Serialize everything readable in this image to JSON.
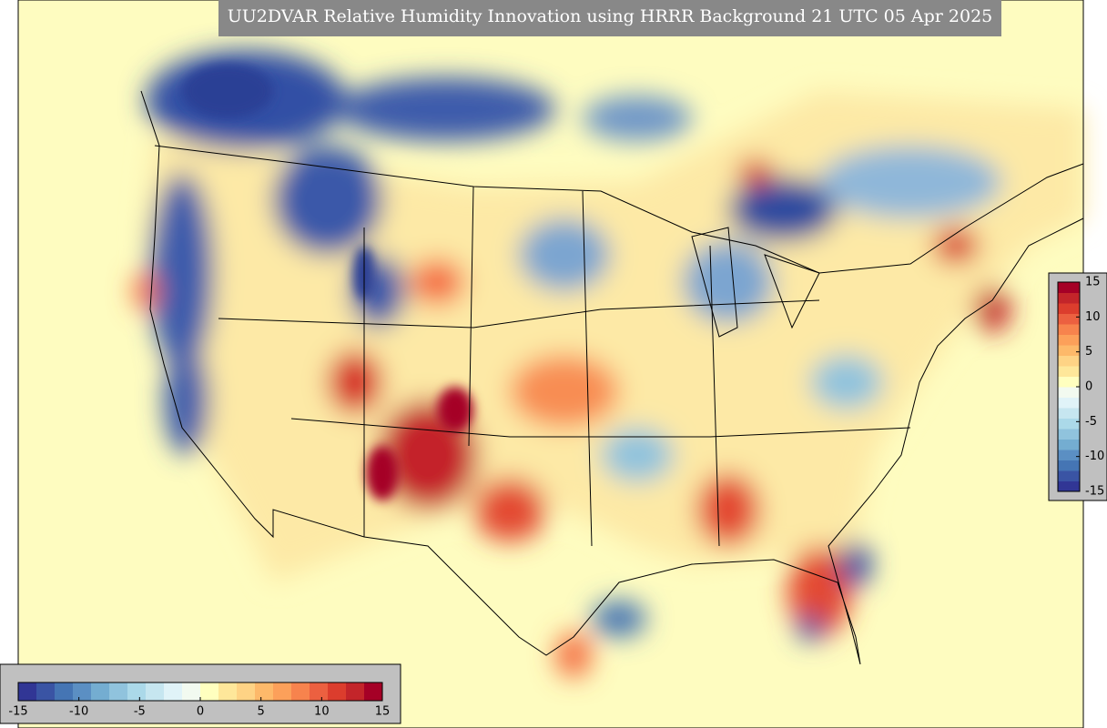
{
  "title": "UU2DVAR Relative Humidity Innovation using HRRR Background 21 UTC 05 Apr 2025",
  "colorbars": [
    {
      "orientation": "horizontal",
      "lim": [
        -15,
        15
      ],
      "ticks": [
        -15,
        -10,
        -5,
        0,
        5,
        10,
        15
      ],
      "colors": [
        "#313695",
        "#3a54a4",
        "#4575b4",
        "#5b8fc3",
        "#74add1",
        "#90c3dd",
        "#abd9e9",
        "#c6e6f0",
        "#e0f3f8",
        "#f2faf0",
        "#ffffbf",
        "#fee79a",
        "#fed385",
        "#fdb96a",
        "#fca05a",
        "#f7834d",
        "#ec6040",
        "#dc3d2d",
        "#c3252a",
        "#a50026"
      ]
    },
    {
      "orientation": "vertical",
      "lim": [
        -15,
        15
      ],
      "ticks": [
        -15,
        -10,
        -5,
        0,
        5,
        10,
        15
      ],
      "colors": [
        "#313695",
        "#3a54a4",
        "#4575b4",
        "#5b8fc3",
        "#74add1",
        "#90c3dd",
        "#abd9e9",
        "#c6e6f0",
        "#e0f3f8",
        "#f2faf0",
        "#ffffbf",
        "#fee79a",
        "#fed385",
        "#fdb96a",
        "#fca05a",
        "#f7834d",
        "#ec6040",
        "#dc3d2d",
        "#c3252a",
        "#a50026"
      ]
    }
  ]
}
